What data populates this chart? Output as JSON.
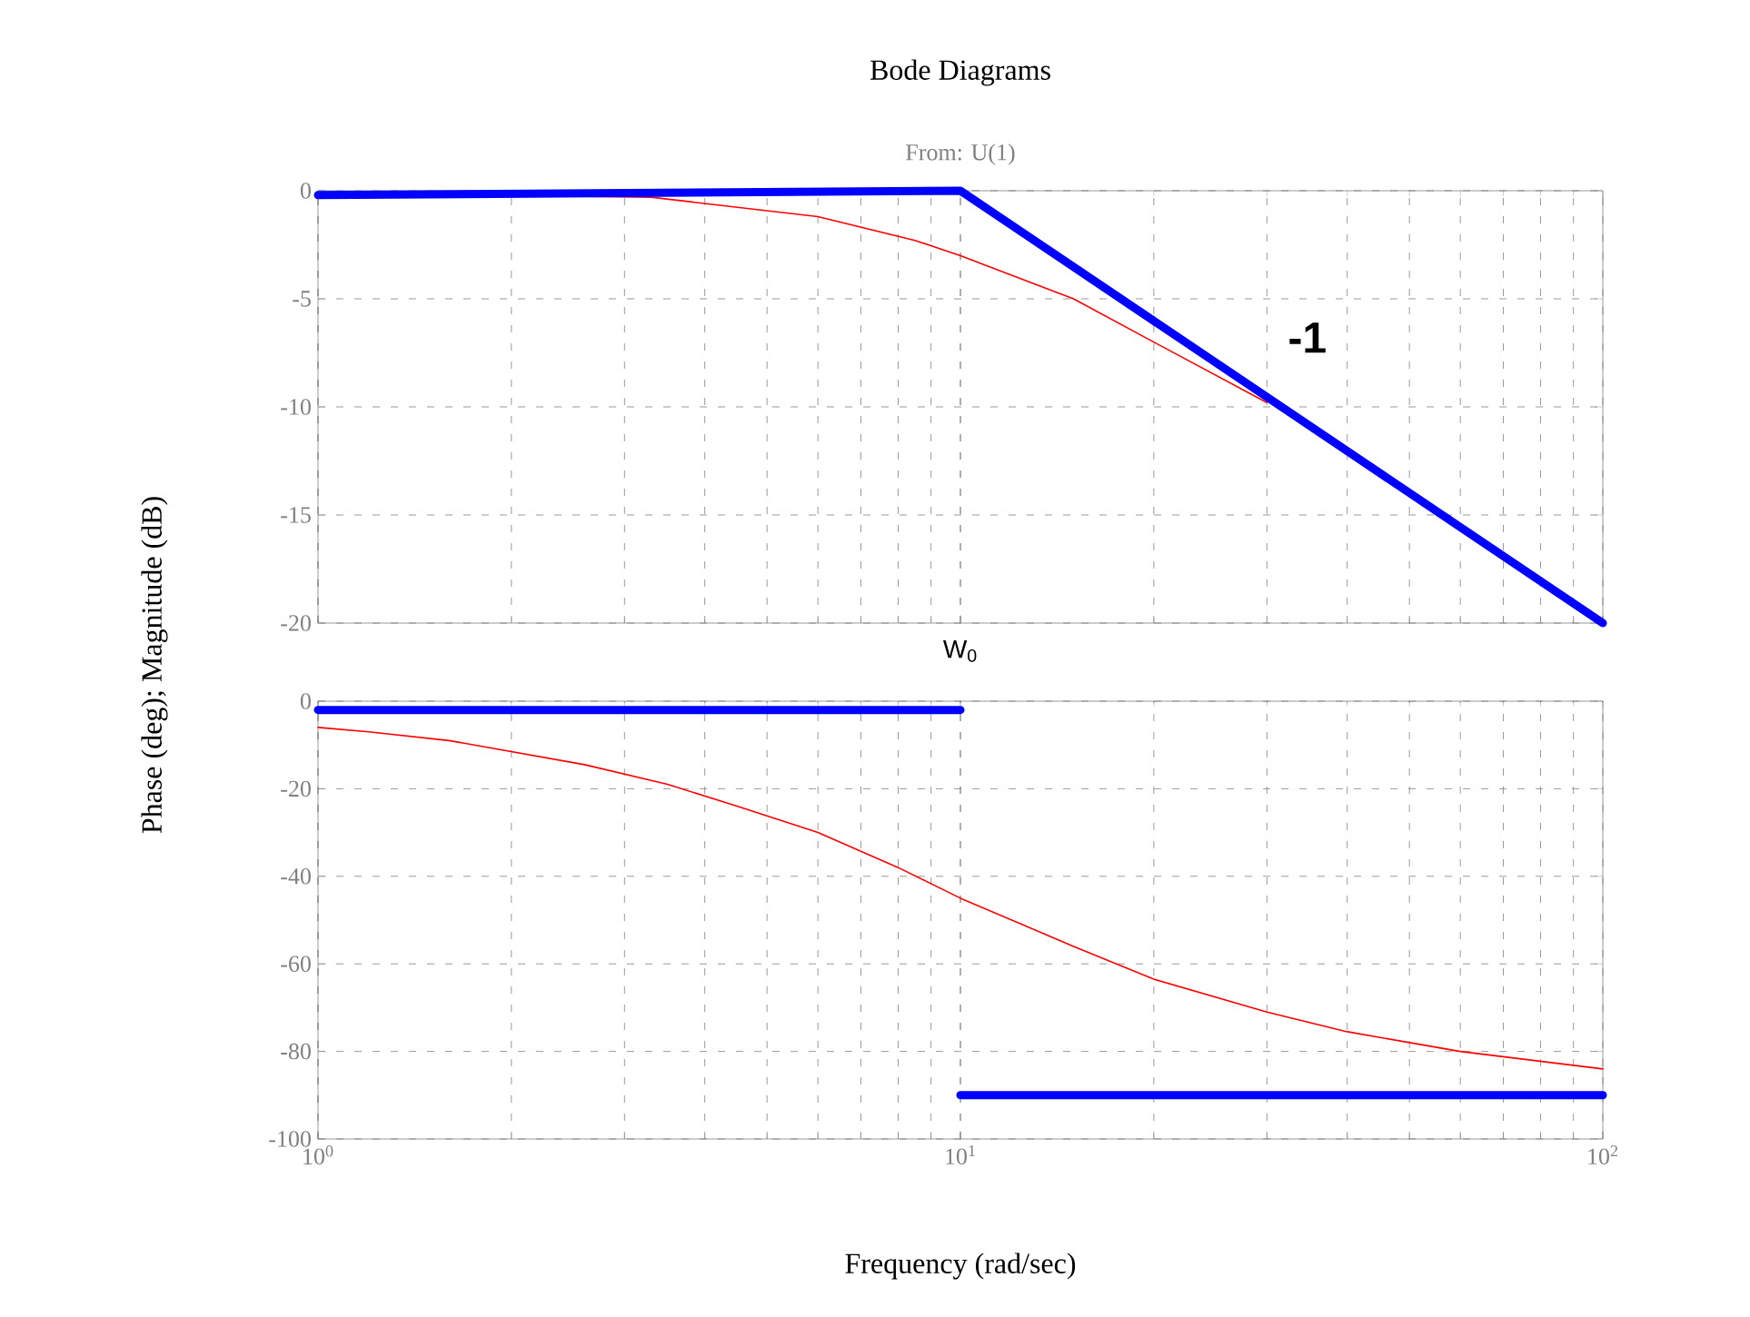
{
  "chart_data": [
    {
      "type": "line",
      "title": "Bode Diagrams",
      "subtitle": "From: U(1)",
      "ylabel": "Phase (deg); Magnitude (dB)",
      "log": "x",
      "grid": true,
      "tick_labels": "y",
      "xlim": [
        1,
        100
      ],
      "ylim": [
        -20,
        0
      ],
      "xticks": [
        1,
        10,
        100
      ],
      "yticks": [
        -20,
        -15,
        -10,
        -5,
        0
      ],
      "annotations": [
        "-1",
        "W$_{0}$"
      ],
      "series": [
        {
          "color": "#ff0000",
          "x": [
            1,
            3.3,
            6,
            8.5,
            10,
            15,
            20,
            30
          ],
          "values": [
            -0.1,
            -0.3,
            -1.2,
            -2.3,
            -3,
            -5,
            -7,
            -9.8
          ]
        },
        {
          "color": "#0000ff",
          "x": [
            1,
            10,
            100
          ],
          "values": [
            -0.2,
            0,
            -20
          ]
        }
      ]
    },
    {
      "type": "line",
      "xlabel": "Frequency (rad/sec)",
      "log": "x",
      "grid": true,
      "xlim": [
        1,
        100
      ],
      "ylim": [
        -100,
        0
      ],
      "xticks": [
        {
          "value": 1,
          "label": "10$^{0}$"
        },
        {
          "value": 10,
          "label": "10$^{1}$"
        },
        {
          "value": 100,
          "label": "10$^{2}$"
        }
      ],
      "yticks": [
        -100,
        -80,
        -60,
        -40,
        -20,
        0
      ],
      "series": [
        {
          "color": "#ff0000",
          "x": [
            1,
            1.2,
            1.6,
            2.6,
            3.5,
            4.5,
            6,
            8,
            10,
            15,
            20,
            30,
            40,
            60,
            100
          ],
          "values": [
            -6,
            -7,
            -9,
            -14.5,
            -19,
            -24,
            -30,
            -38,
            -45,
            -56,
            -63.5,
            -71,
            -75.5,
            -80,
            -84
          ]
        },
        {
          "color": "#0000ff",
          "x": [
            1,
            10
          ],
          "values": [
            -2,
            -2
          ]
        },
        {
          "color": "#0000ff",
          "x": [
            10,
            100
          ],
          "values": [
            -90,
            -90
          ]
        }
      ]
    }
  ]
}
